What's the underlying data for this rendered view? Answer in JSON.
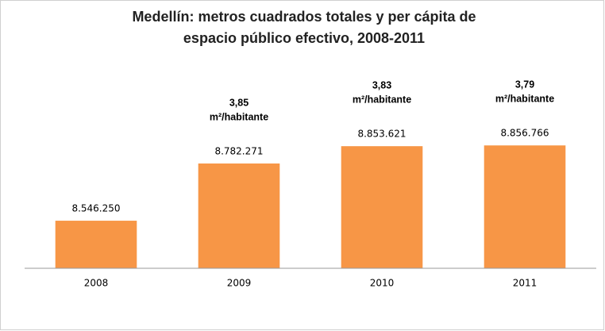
{
  "chart_data": {
    "type": "bar",
    "title": [
      "Medellín: metros cuadrados totales y per cápita de",
      "espacio público efectivo, 2008-2011"
    ],
    "categories": [
      "2008",
      "2009",
      "2010",
      "2011"
    ],
    "values": [
      8546250,
      8782271,
      8853621,
      8856766
    ],
    "value_labels": [
      "8.546.250",
      "8.782.271",
      "8.853.621",
      "8.856.766"
    ],
    "color": "#f79646",
    "ylim": [
      8350000,
      8900000
    ],
    "per_capita": {
      "values": [
        null,
        3.85,
        3.83,
        3.79
      ],
      "value_labels": [
        null,
        "3,85",
        "3,83",
        "3,79"
      ],
      "unit": "m²/habitante"
    }
  }
}
